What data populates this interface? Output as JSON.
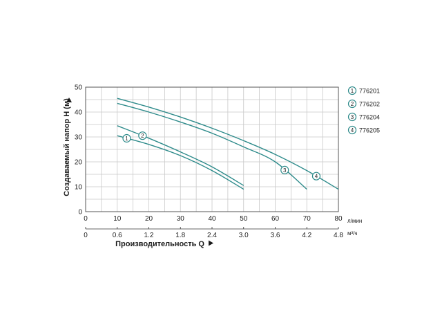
{
  "chart_data": {
    "type": "line",
    "xlabel": "Производительность Q",
    "ylabel": "Создаваемый напор H (м)",
    "x_unit_primary": "л/мин",
    "x_unit_secondary": "м³/ч",
    "x_ticks_primary": [
      "0",
      "10",
      "20",
      "30",
      "40",
      "50",
      "60",
      "70",
      "80"
    ],
    "x_ticks_secondary": [
      "0",
      "0.6",
      "1.2",
      "1.8",
      "2.4",
      "3.0",
      "3.6",
      "4.2",
      "4.8"
    ],
    "y_ticks": [
      "0",
      "10",
      "20",
      "30",
      "40",
      "50"
    ],
    "xlim": [
      0,
      80
    ],
    "ylim": [
      0,
      50
    ],
    "grid": true,
    "line_color": "#2e8b8b",
    "series": [
      {
        "name": "776201",
        "marker": "1",
        "marker_x": 13,
        "x": [
          10,
          20,
          30,
          40,
          50
        ],
        "y": [
          30.5,
          27,
          22.5,
          16.5,
          9
        ]
      },
      {
        "name": "776202",
        "marker": "2",
        "marker_x": 18,
        "x": [
          10,
          20,
          30,
          40,
          50
        ],
        "y": [
          34.5,
          29.5,
          24,
          18,
          10.5
        ]
      },
      {
        "name": "776204",
        "marker": "3",
        "marker_x": 63,
        "x": [
          10,
          20,
          30,
          40,
          50,
          60,
          70
        ],
        "y": [
          43.5,
          40,
          36,
          31.5,
          26,
          20,
          9
        ]
      },
      {
        "name": "776205",
        "marker": "4",
        "marker_x": 73,
        "x": [
          10,
          20,
          30,
          40,
          50,
          60,
          70,
          80
        ],
        "y": [
          45.5,
          42,
          38,
          33.5,
          28.5,
          23,
          16.5,
          9
        ]
      }
    ]
  }
}
